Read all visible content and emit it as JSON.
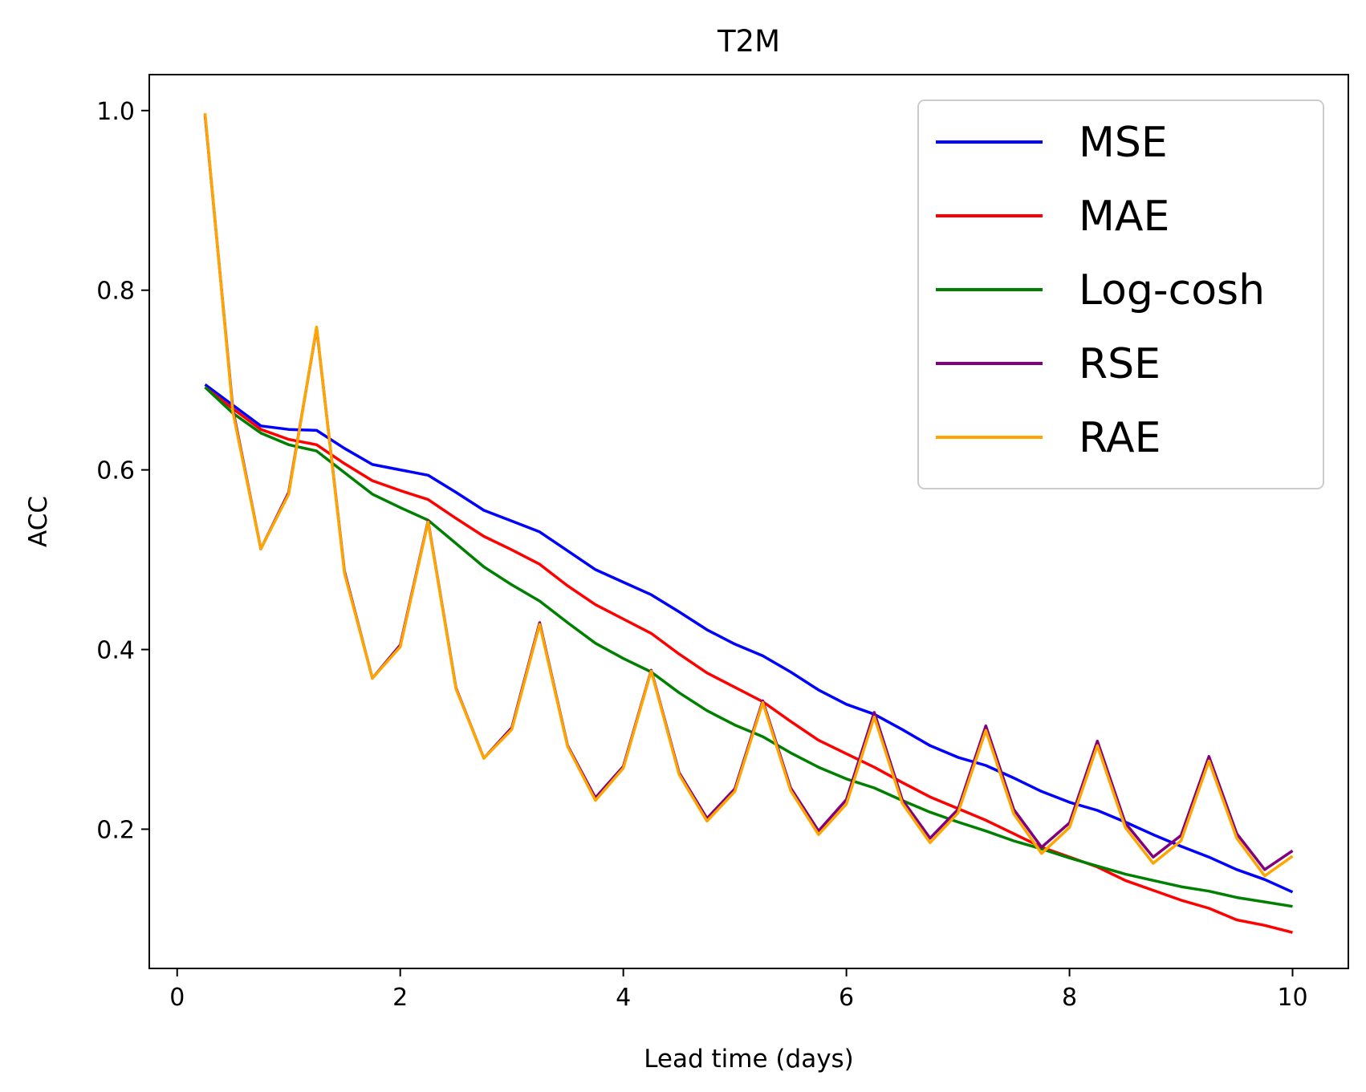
{
  "chart_data": {
    "type": "line",
    "title": "T2M",
    "xlabel": "Lead time (days)",
    "ylabel": "ACC",
    "xlim": [
      -0.25,
      10.5
    ],
    "ylim": [
      0.045,
      1.04
    ],
    "xticks": [
      0,
      2,
      4,
      6,
      8,
      10
    ],
    "xtick_labels": [
      "0",
      "2",
      "4",
      "6",
      "8",
      "10"
    ],
    "yticks": [
      0.2,
      0.4,
      0.6,
      0.8,
      1.0
    ],
    "ytick_labels": [
      "0.2",
      "0.4",
      "0.6",
      "0.8",
      "1.0"
    ],
    "grid": false,
    "legend_position": "top-right",
    "x": [
      0.25,
      0.5,
      0.75,
      1.0,
      1.25,
      1.5,
      1.75,
      2.0,
      2.25,
      2.5,
      2.75,
      3.0,
      3.25,
      3.5,
      3.75,
      4.0,
      4.25,
      4.5,
      4.75,
      5.0,
      5.25,
      5.5,
      5.75,
      6.0,
      6.25,
      6.5,
      6.75,
      7.0,
      7.25,
      7.5,
      7.75,
      8.0,
      8.25,
      8.5,
      8.75,
      9.0,
      9.25,
      9.5,
      9.75,
      10.0
    ],
    "series": [
      {
        "name": "MSE",
        "color": "#0000ff",
        "values": [
          0.695,
          0.672,
          0.649,
          0.645,
          0.644,
          0.624,
          0.606,
          0.6,
          0.594,
          0.575,
          0.555,
          0.543,
          0.531,
          0.51,
          0.489,
          0.475,
          0.461,
          0.442,
          0.422,
          0.406,
          0.393,
          0.375,
          0.355,
          0.339,
          0.328,
          0.311,
          0.293,
          0.28,
          0.271,
          0.257,
          0.242,
          0.23,
          0.221,
          0.208,
          0.194,
          0.181,
          0.169,
          0.155,
          0.144,
          0.13
        ]
      },
      {
        "name": "MAE",
        "color": "#ff0000",
        "values": [
          0.692,
          0.668,
          0.645,
          0.634,
          0.628,
          0.607,
          0.588,
          0.577,
          0.567,
          0.546,
          0.526,
          0.511,
          0.495,
          0.471,
          0.45,
          0.434,
          0.418,
          0.395,
          0.374,
          0.358,
          0.342,
          0.32,
          0.299,
          0.284,
          0.269,
          0.252,
          0.236,
          0.223,
          0.21,
          0.195,
          0.18,
          0.169,
          0.158,
          0.143,
          0.132,
          0.121,
          0.112,
          0.099,
          0.093,
          0.085
        ]
      },
      {
        "name": "Log-cosh",
        "color": "#008000",
        "values": [
          0.692,
          0.663,
          0.641,
          0.628,
          0.621,
          0.597,
          0.573,
          0.558,
          0.544,
          0.518,
          0.492,
          0.472,
          0.454,
          0.43,
          0.407,
          0.39,
          0.375,
          0.352,
          0.332,
          0.316,
          0.303,
          0.285,
          0.269,
          0.256,
          0.246,
          0.232,
          0.219,
          0.208,
          0.198,
          0.187,
          0.178,
          0.168,
          0.159,
          0.15,
          0.143,
          0.136,
          0.131,
          0.124,
          0.119,
          0.114
        ]
      },
      {
        "name": "RSE",
        "color": "#800080",
        "values": [
          0.995,
          0.667,
          0.512,
          0.575,
          0.758,
          0.487,
          0.368,
          0.405,
          0.543,
          0.357,
          0.279,
          0.313,
          0.43,
          0.293,
          0.235,
          0.27,
          0.377,
          0.263,
          0.212,
          0.245,
          0.343,
          0.246,
          0.198,
          0.233,
          0.33,
          0.233,
          0.19,
          0.222,
          0.315,
          0.222,
          0.18,
          0.207,
          0.298,
          0.207,
          0.169,
          0.193,
          0.281,
          0.195,
          0.155,
          0.176
        ]
      },
      {
        "name": "RAE",
        "color": "#ffa500",
        "values": [
          0.997,
          0.664,
          0.512,
          0.573,
          0.759,
          0.485,
          0.368,
          0.403,
          0.542,
          0.356,
          0.279,
          0.311,
          0.428,
          0.292,
          0.232,
          0.268,
          0.376,
          0.261,
          0.209,
          0.242,
          0.341,
          0.243,
          0.194,
          0.228,
          0.325,
          0.229,
          0.185,
          0.218,
          0.31,
          0.217,
          0.173,
          0.202,
          0.293,
          0.202,
          0.162,
          0.187,
          0.276,
          0.19,
          0.148,
          0.17
        ]
      }
    ]
  }
}
